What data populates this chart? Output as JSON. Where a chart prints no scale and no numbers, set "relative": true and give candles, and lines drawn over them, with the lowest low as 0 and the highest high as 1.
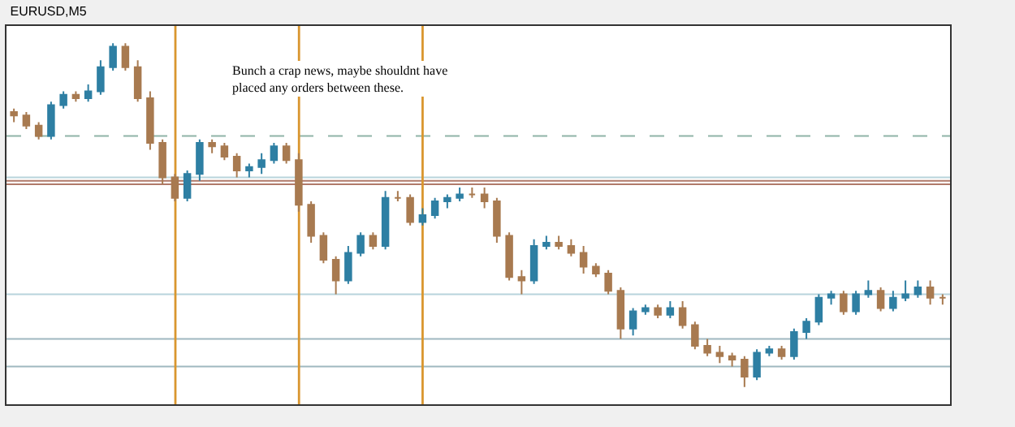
{
  "chart_data": {
    "type": "candlestick",
    "title": "EURUSD,M5",
    "relative": true,
    "tick_labels": false,
    "categories": [
      null,
      null,
      null,
      null,
      null,
      null,
      null,
      null,
      null,
      null,
      null,
      null,
      null,
      null,
      null,
      null,
      null,
      null,
      null,
      null,
      null,
      null,
      null,
      null,
      null,
      null,
      null,
      null,
      null,
      null,
      null,
      null,
      null,
      null,
      null,
      null,
      null,
      null,
      null,
      null,
      null,
      null,
      null,
      null,
      null,
      null,
      null,
      null,
      null,
      null,
      null,
      null,
      null,
      null,
      null,
      null,
      null,
      null,
      null,
      null,
      null,
      null,
      null,
      null,
      null,
      null,
      null,
      null,
      null,
      null,
      null,
      null,
      null,
      null,
      null,
      null
    ],
    "ohlc": [
      [
        0.8,
        0.81,
        0.77,
        0.79
      ],
      [
        0.79,
        0.8,
        0.75,
        0.76
      ],
      [
        0.76,
        0.77,
        0.72,
        0.73
      ],
      [
        0.73,
        0.83,
        0.72,
        0.82
      ],
      [
        0.82,
        0.86,
        0.81,
        0.85
      ],
      [
        0.85,
        0.86,
        0.83,
        0.84
      ],
      [
        0.84,
        0.88,
        0.83,
        0.86
      ],
      [
        0.86,
        0.95,
        0.85,
        0.93
      ],
      [
        0.93,
        1.0,
        0.92,
        0.99
      ],
      [
        0.99,
        1.0,
        0.92,
        0.93
      ],
      [
        0.93,
        0.95,
        0.83,
        0.84
      ],
      [
        0.84,
        0.86,
        0.69,
        0.71
      ],
      [
        0.71,
        0.72,
        0.59,
        0.61
      ],
      [
        0.61,
        0.62,
        0.54,
        0.55
      ],
      [
        0.55,
        0.63,
        0.54,
        0.62
      ],
      [
        0.62,
        0.72,
        0.6,
        0.71
      ],
      [
        0.71,
        0.72,
        0.68,
        0.7
      ],
      [
        0.7,
        0.71,
        0.66,
        0.67
      ],
      [
        0.67,
        0.68,
        0.61,
        0.63
      ],
      [
        0.63,
        0.65,
        0.61,
        0.64
      ],
      [
        0.64,
        0.68,
        0.62,
        0.66
      ],
      [
        0.66,
        0.71,
        0.65,
        0.7
      ],
      [
        0.7,
        0.71,
        0.65,
        0.66
      ],
      [
        0.66,
        0.68,
        0.51,
        0.53
      ],
      [
        0.53,
        0.54,
        0.42,
        0.44
      ],
      [
        0.44,
        0.45,
        0.36,
        0.37
      ],
      [
        0.37,
        0.38,
        0.27,
        0.31
      ],
      [
        0.31,
        0.41,
        0.3,
        0.39
      ],
      [
        0.39,
        0.45,
        0.38,
        0.44
      ],
      [
        0.44,
        0.45,
        0.4,
        0.41
      ],
      [
        0.41,
        0.57,
        0.4,
        0.55
      ],
      [
        0.55,
        0.57,
        0.54,
        0.55
      ],
      [
        0.55,
        0.56,
        0.47,
        0.48
      ],
      [
        0.48,
        0.52,
        0.47,
        0.5
      ],
      [
        0.5,
        0.55,
        0.49,
        0.54
      ],
      [
        0.54,
        0.56,
        0.52,
        0.55
      ],
      [
        0.55,
        0.58,
        0.54,
        0.56
      ],
      [
        0.56,
        0.58,
        0.55,
        0.56
      ],
      [
        0.56,
        0.58,
        0.52,
        0.54
      ],
      [
        0.54,
        0.55,
        0.42,
        0.44
      ],
      [
        0.44,
        0.45,
        0.31,
        0.32
      ],
      [
        0.32,
        0.34,
        0.27,
        0.31
      ],
      [
        0.31,
        0.43,
        0.3,
        0.41
      ],
      [
        0.41,
        0.44,
        0.4,
        0.42
      ],
      [
        0.42,
        0.44,
        0.4,
        0.41
      ],
      [
        0.41,
        0.43,
        0.38,
        0.39
      ],
      [
        0.39,
        0.41,
        0.33,
        0.35
      ],
      [
        0.35,
        0.36,
        0.32,
        0.33
      ],
      [
        0.33,
        0.34,
        0.27,
        0.28
      ],
      [
        0.28,
        0.29,
        0.14,
        0.17
      ],
      [
        0.17,
        0.23,
        0.15,
        0.22
      ],
      [
        0.22,
        0.24,
        0.21,
        0.23
      ],
      [
        0.23,
        0.24,
        0.2,
        0.21
      ],
      [
        0.21,
        0.25,
        0.2,
        0.23
      ],
      [
        0.23,
        0.25,
        0.17,
        0.18
      ],
      [
        0.18,
        0.19,
        0.11,
        0.12
      ],
      [
        0.12,
        0.14,
        0.09,
        0.1
      ],
      [
        0.1,
        0.12,
        0.07,
        0.09
      ],
      [
        0.09,
        0.1,
        0.06,
        0.08
      ],
      [
        0.08,
        0.09,
        0.0,
        0.03
      ],
      [
        0.03,
        0.11,
        0.02,
        0.1
      ],
      [
        0.1,
        0.12,
        0.09,
        0.11
      ],
      [
        0.11,
        0.12,
        0.08,
        0.09
      ],
      [
        0.09,
        0.17,
        0.08,
        0.16
      ],
      [
        0.16,
        0.2,
        0.14,
        0.19
      ],
      [
        0.19,
        0.27,
        0.18,
        0.26
      ],
      [
        0.26,
        0.28,
        0.24,
        0.27
      ],
      [
        0.27,
        0.28,
        0.21,
        0.22
      ],
      [
        0.22,
        0.28,
        0.21,
        0.27
      ],
      [
        0.27,
        0.31,
        0.26,
        0.28
      ],
      [
        0.28,
        0.29,
        0.22,
        0.23
      ],
      [
        0.23,
        0.28,
        0.22,
        0.26
      ],
      [
        0.26,
        0.31,
        0.25,
        0.27
      ],
      [
        0.27,
        0.31,
        0.26,
        0.29
      ],
      [
        0.29,
        0.31,
        0.24,
        0.26
      ],
      [
        0.26,
        0.27,
        0.24,
        0.26
      ]
    ],
    "colors": [
      "#a87a50",
      "#a87a50",
      "#a87a50",
      "#2e7fa3",
      "#2e7fa3",
      "#a87a50",
      "#2e7fa3",
      "#2e7fa3",
      "#2e7fa3",
      "#a87a50",
      "#a87a50",
      "#a87a50",
      "#a87a50",
      "#a87a50",
      "#2e7fa3",
      "#2e7fa3",
      "#a87a50",
      "#a87a50",
      "#a87a50",
      "#2e7fa3",
      "#2e7fa3",
      "#2e7fa3",
      "#a87a50",
      "#a87a50",
      "#a87a50",
      "#a87a50",
      "#a87a50",
      "#2e7fa3",
      "#2e7fa3",
      "#a87a50",
      "#2e7fa3",
      "#a87a50",
      "#a87a50",
      "#2e7fa3",
      "#2e7fa3",
      "#2e7fa3",
      "#2e7fa3",
      "#a87a50",
      "#a87a50",
      "#a87a50",
      "#a87a50",
      "#a87a50",
      "#2e7fa3",
      "#2e7fa3",
      "#a87a50",
      "#a87a50",
      "#a87a50",
      "#a87a50",
      "#a87a50",
      "#a87a50",
      "#2e7fa3",
      "#2e7fa3",
      "#a87a50",
      "#2e7fa3",
      "#a87a50",
      "#a87a50",
      "#a87a50",
      "#a87a50",
      "#a87a50",
      "#a87a50",
      "#2e7fa3",
      "#2e7fa3",
      "#a87a50",
      "#2e7fa3",
      "#2e7fa3",
      "#2e7fa3",
      "#2e7fa3",
      "#a87a50",
      "#2e7fa3",
      "#2e7fa3",
      "#a87a50",
      "#2e7fa3",
      "#2e7fa3",
      "#2e7fa3",
      "#a87a50",
      "#a87a50"
    ],
    "ref_lines": [
      {
        "axis": "y",
        "value": 0.73,
        "color": "#8fb3a8",
        "line_style": "dashed"
      },
      {
        "axis": "y",
        "value": 0.61,
        "color": "#b8d4dc"
      },
      {
        "axis": "y",
        "value": 0.6,
        "color": "#b07a6a"
      },
      {
        "axis": "y",
        "value": 0.59,
        "color": "#b07a6a"
      },
      {
        "axis": "y",
        "value": 0.27,
        "color": "#b8d4dc"
      },
      {
        "axis": "y",
        "value": 0.14,
        "color": "#9fb8c0"
      },
      {
        "axis": "y",
        "value": 0.06,
        "color": "#9fb8c0"
      }
    ],
    "annotations": [
      "Bunch a crap news, maybe shouldnt have placed any orders between these."
    ]
  }
}
